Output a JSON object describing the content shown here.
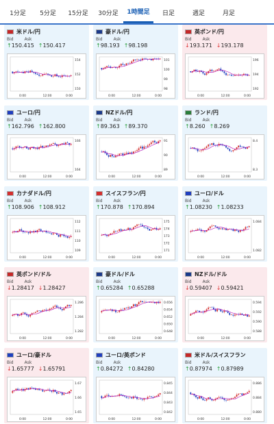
{
  "tabs": [
    {
      "label": "1分足",
      "active": false
    },
    {
      "label": "5分足",
      "active": false
    },
    {
      "label": "15分足",
      "active": false
    },
    {
      "label": "30分足",
      "active": false
    },
    {
      "label": "1時間足",
      "active": true
    },
    {
      "label": "日足",
      "active": false
    },
    {
      "label": "週足",
      "active": false
    },
    {
      "label": "月足",
      "active": false
    }
  ],
  "bid_label": "Bid",
  "ask_label": "Ask",
  "cards": [
    {
      "pair": "米ドル/円",
      "flag": "us",
      "dir": "up",
      "bid": "150.415",
      "ask": "150.417",
      "yticks": [
        "154",
        "152",
        "150"
      ],
      "xticks": [
        "0:00",
        "12:00",
        "0:00"
      ]
    },
    {
      "pair": "豪ドル/円",
      "flag": "au",
      "dir": "up",
      "bid": "98.193",
      "ask": "98.198",
      "yticks": [
        "101",
        "100",
        "99",
        "98"
      ],
      "xticks": [
        "0:00",
        "12:00",
        "0:00"
      ]
    },
    {
      "pair": "英ポンド/円",
      "flag": "gb",
      "dir": "down",
      "bid": "193.171",
      "ask": "193.178",
      "yticks": [
        "196",
        "194",
        "192"
      ],
      "xticks": [
        "0:00",
        "12:00",
        "0:00"
      ]
    },
    {
      "pair": "ユーロ/円",
      "flag": "eu",
      "dir": "up",
      "bid": "162.796",
      "ask": "162.800",
      "yticks": [
        "166",
        "164"
      ],
      "xticks": [
        "0:00",
        "12:00",
        "0:00"
      ]
    },
    {
      "pair": "NZドル/円",
      "flag": "nz",
      "dir": "up",
      "bid": "89.363",
      "ask": "89.370",
      "yticks": [
        "91",
        "90",
        "89"
      ],
      "xticks": [
        "0:00",
        "12:00",
        "0:00"
      ]
    },
    {
      "pair": "ランド/円",
      "flag": "za",
      "dir": "up",
      "bid": "8.260",
      "ask": "8.269",
      "yticks": [
        "8.4",
        "8.3"
      ],
      "xticks": [
        "0:00",
        "12:00",
        "0:00"
      ]
    },
    {
      "pair": "カナダドル/円",
      "flag": "ca",
      "dir": "up",
      "bid": "108.906",
      "ask": "108.912",
      "yticks": [
        "112",
        "111",
        "110",
        "109"
      ],
      "xticks": [
        "0:00",
        "12:00",
        "0:00"
      ]
    },
    {
      "pair": "スイスフラン/円",
      "flag": "ch",
      "dir": "up",
      "bid": "170.878",
      "ask": "170.894",
      "yticks": [
        "175",
        "174",
        "173",
        "172",
        "171"
      ],
      "xticks": [
        "0:00",
        "12:00",
        "0:00"
      ]
    },
    {
      "pair": "ユーロ/ドル",
      "flag": "eu",
      "dir": "up",
      "bid": "1.08230",
      "ask": "1.08233",
      "yticks": [
        "1.084",
        "1.082"
      ],
      "xticks": [
        "0:00",
        "12:00",
        "0:00"
      ]
    },
    {
      "pair": "英ポンド/ドル",
      "flag": "gb",
      "dir": "down",
      "bid": "1.28417",
      "ask": "1.28427",
      "yticks": [
        "1.286",
        "1.284",
        "1.282"
      ],
      "xticks": [
        "0:00",
        "12:00",
        "0:00"
      ]
    },
    {
      "pair": "豪ドル/ドル",
      "flag": "au",
      "dir": "up",
      "bid": "0.65284",
      "ask": "0.65288",
      "yticks": [
        "0.656",
        "0.654",
        "0.652",
        "0.650",
        "0.648"
      ],
      "xticks": [
        "0:00",
        "12:00",
        "0:00"
      ]
    },
    {
      "pair": "NZドル/ドル",
      "flag": "nz",
      "dir": "down",
      "bid": "0.59407",
      "ask": "0.59421",
      "yticks": [
        "0.594",
        "0.592",
        "0.590",
        "0.588"
      ],
      "xticks": [
        "0:00",
        "12:00",
        "0:00"
      ]
    },
    {
      "pair": "ユーロ/豪ドル",
      "flag": "eu",
      "dir": "down",
      "bid": "1.65777",
      "ask": "1.65791",
      "yticks": [
        "1.67",
        "1.66",
        "1.65"
      ],
      "xticks": [
        "0:00",
        "12:00",
        "0:00"
      ]
    },
    {
      "pair": "ユーロ/英ポンド",
      "flag": "eu",
      "dir": "up",
      "bid": "0.84272",
      "ask": "0.84280",
      "yticks": [
        "0.845",
        "0.844",
        "0.843",
        "0.842"
      ],
      "xticks": [
        "0:00",
        "12:00",
        "0:00"
      ]
    },
    {
      "pair": "米ドル/スイスフラン",
      "flag": "us",
      "dir": "up",
      "bid": "0.87974",
      "ask": "0.87989",
      "yticks": [
        "0.886",
        "0.884",
        "0.880"
      ],
      "xticks": [
        "0:00",
        "12:00",
        "0:00"
      ]
    }
  ],
  "colors": {
    "up_arrow": "#2a9d3b",
    "down_arrow": "#d33333",
    "accent": "#1a5fb4",
    "candle_up": "#d32f2f",
    "candle_down": "#1f3fbf",
    "ma": "#b000b0"
  }
}
